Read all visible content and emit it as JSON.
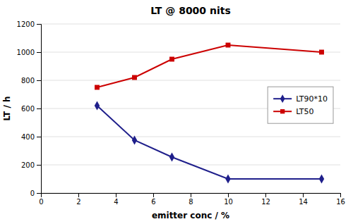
{
  "chart_data": {
    "type": "line",
    "title": "LT @ 8000 nits",
    "xlabel": "emitter conc / %",
    "ylabel": "LT / h",
    "xlim": [
      0,
      16
    ],
    "ylim": [
      0,
      1200
    ],
    "xticks": [
      0,
      2,
      4,
      6,
      8,
      10,
      12,
      14,
      16
    ],
    "yticks": [
      0,
      200,
      400,
      600,
      800,
      1000,
      1200
    ],
    "grid": "y",
    "legend": "right",
    "x": [
      3,
      5,
      7,
      10,
      15
    ],
    "series": [
      {
        "name": "LT90*10",
        "color": "#1F1F8B",
        "marker": "diamond",
        "values": [
          620,
          375,
          255,
          100,
          100
        ]
      },
      {
        "name": "LT50",
        "color": "#CC0000",
        "marker": "square",
        "values": [
          750,
          820,
          950,
          1050,
          1000
        ]
      }
    ]
  }
}
